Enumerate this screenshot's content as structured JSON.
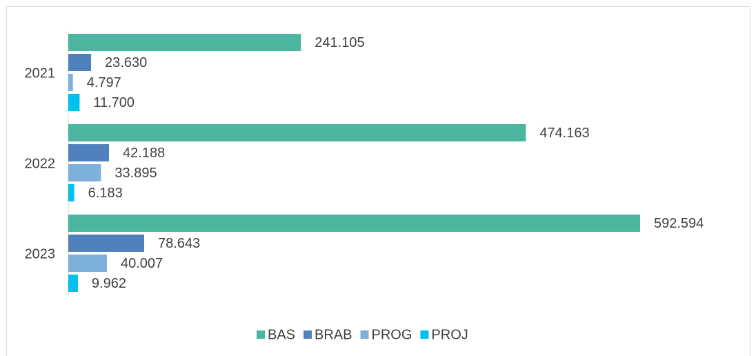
{
  "chart_data": {
    "type": "hbar",
    "categories": [
      "2021",
      "2022",
      "2023"
    ],
    "series": [
      {
        "name": "BAS",
        "color": "#4bb5a0",
        "values": [
          241105,
          474163,
          592594
        ],
        "value_labels": [
          "241.105",
          "474.163",
          "592.594"
        ]
      },
      {
        "name": "BRAB",
        "color": "#4f81bd",
        "values": [
          23630,
          42188,
          78643
        ],
        "value_labels": [
          "23.630",
          "42.188",
          "78.643"
        ]
      },
      {
        "name": "PROG",
        "color": "#7eb0dc",
        "values": [
          4797,
          33895,
          40007
        ],
        "value_labels": [
          "4.797",
          "33.895",
          "40.007"
        ]
      },
      {
        "name": "PROJ",
        "color": "#00c0ef",
        "values": [
          11700,
          6183,
          9962
        ],
        "value_labels": [
          "11.700",
          "6.183",
          "9.962"
        ]
      }
    ],
    "legend": "bottom"
  }
}
